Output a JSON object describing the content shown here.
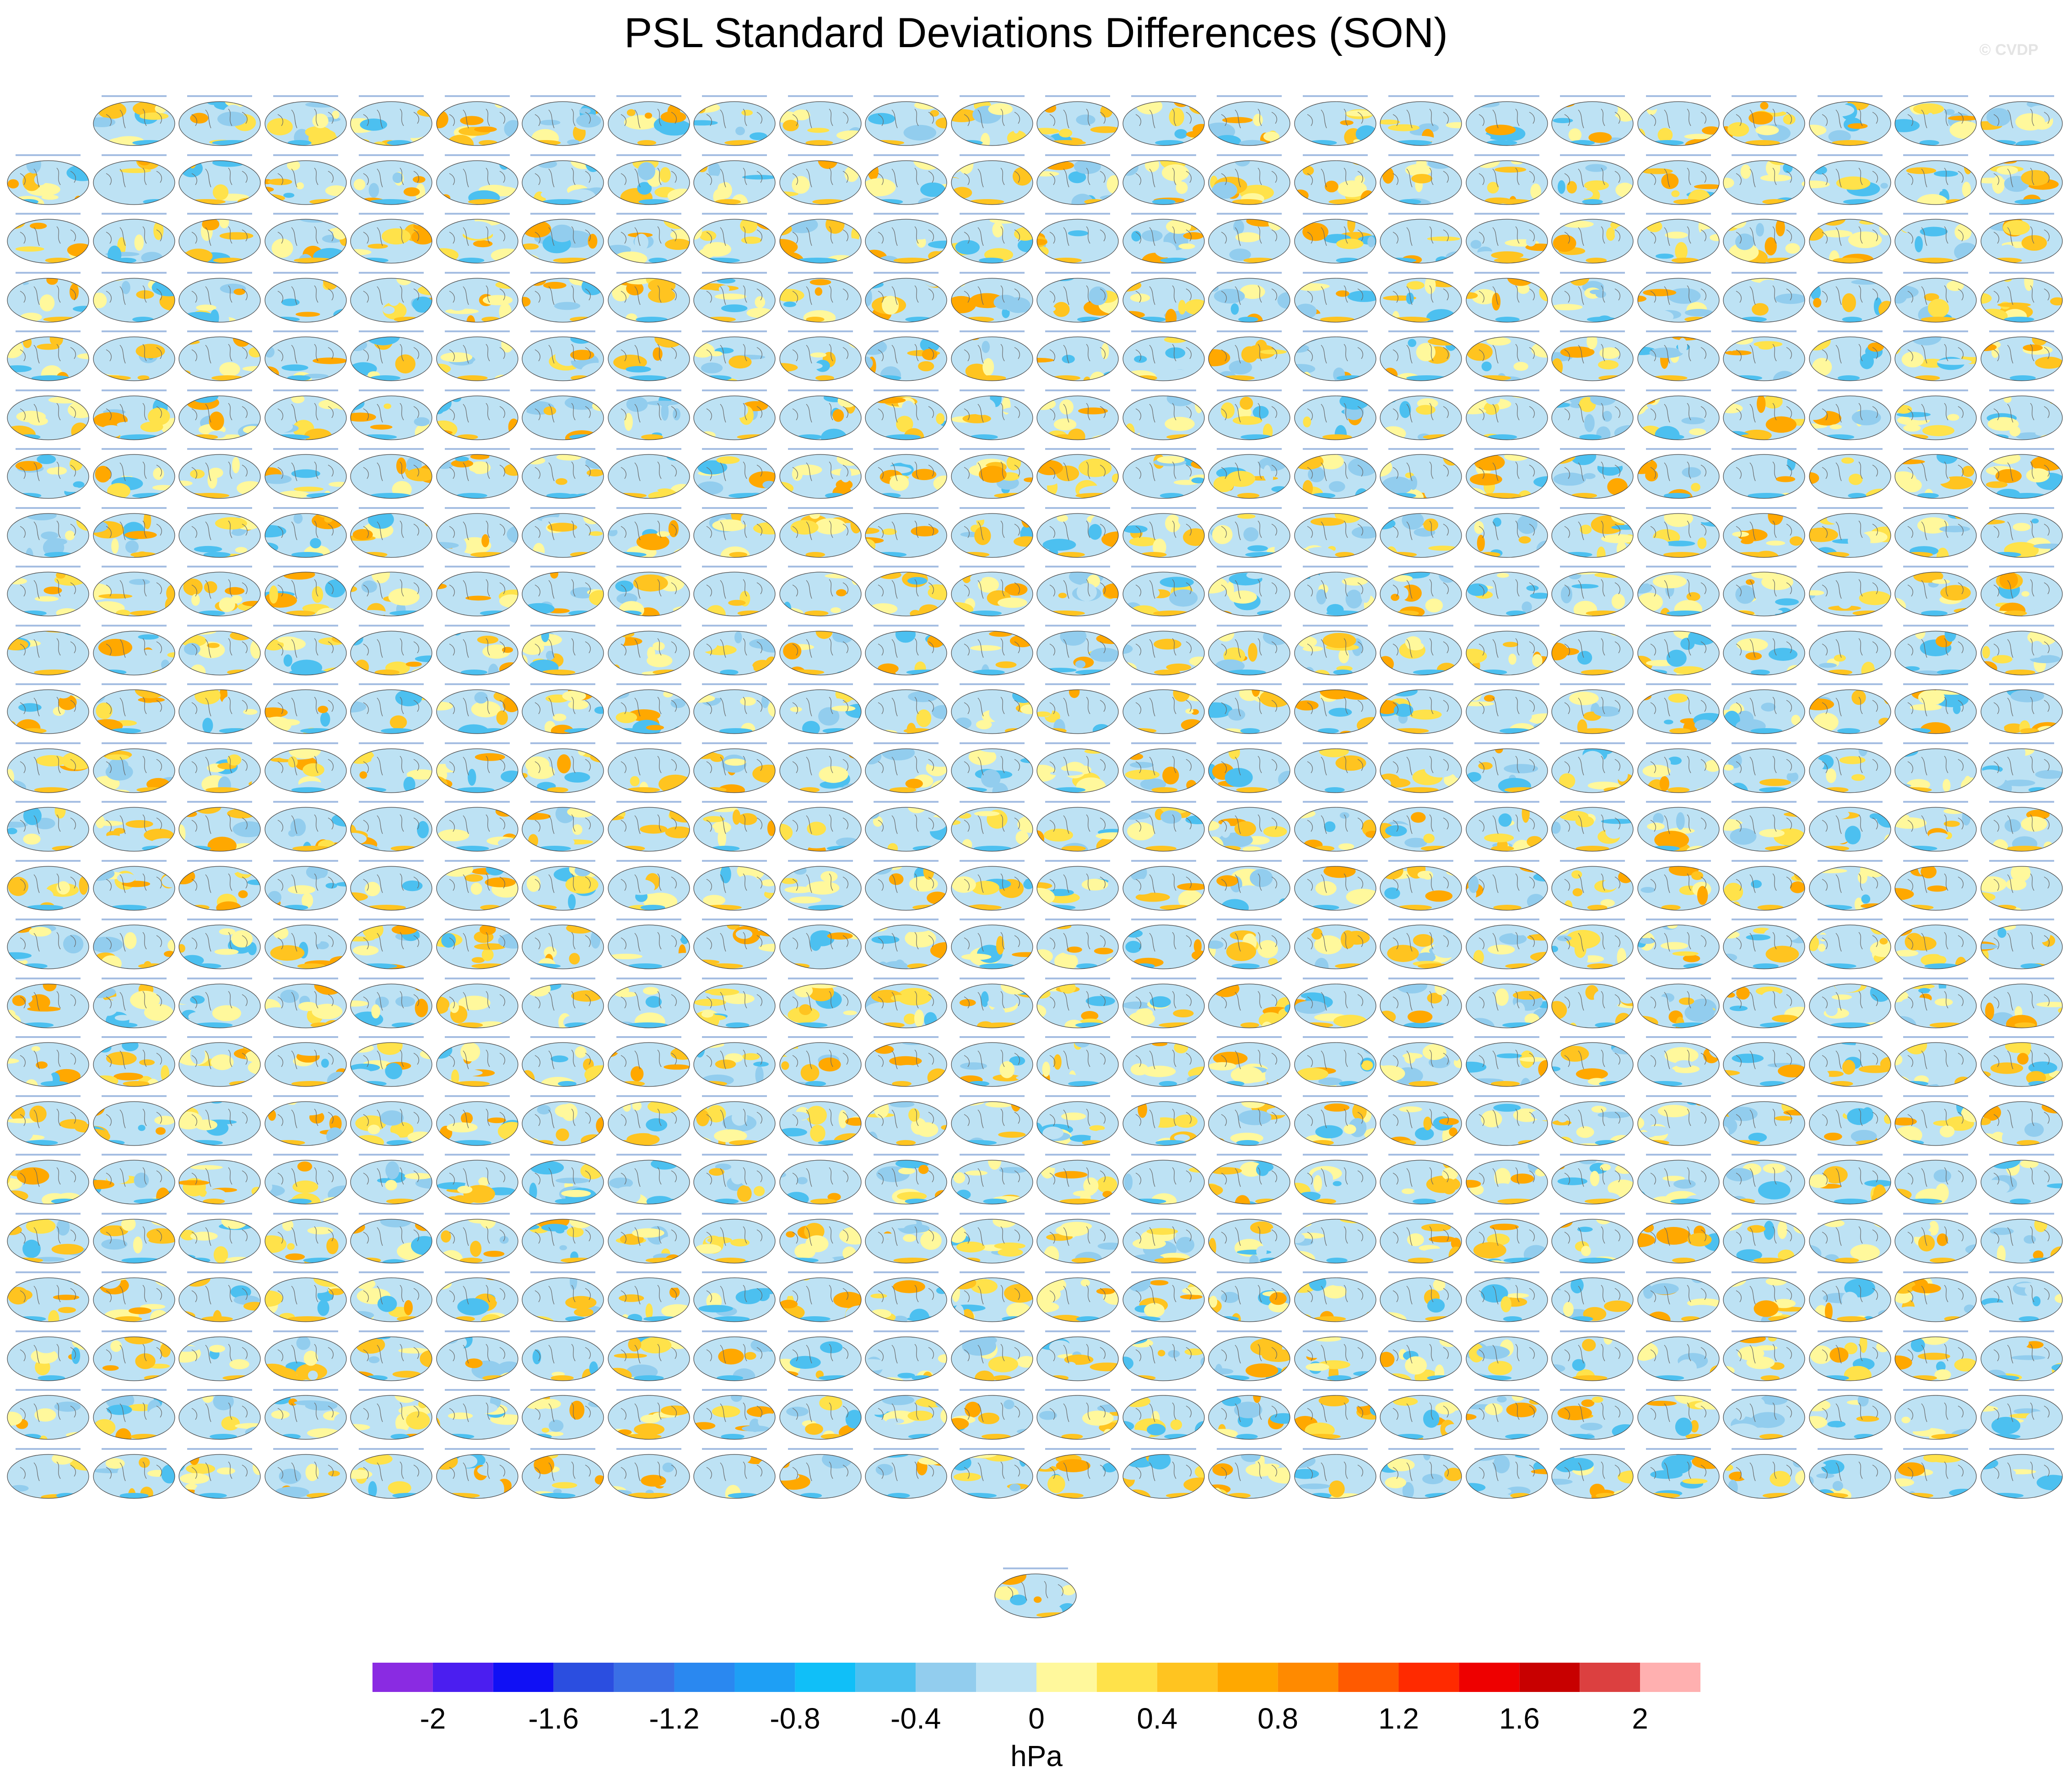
{
  "title": "PSL Standard Deviations Differences (SON)",
  "credit": "© CVDP",
  "chart_data": {
    "type": "heatmap",
    "title": "PSL Standard Deviations Differences (SON)",
    "description_panels": {
      "rows": 25,
      "columns": 24,
      "first_row_panels": 23,
      "last_row_panels": 1,
      "projection": "Robinson (global ellipse)",
      "subtitle_style": "tiny blue text per panel"
    },
    "colorbar": {
      "unit": "hPa",
      "tick_labels": [
        "-2",
        "-1.6",
        "-1.2",
        "-0.8",
        "-0.4",
        "0",
        "0.4",
        "0.8",
        "1.2",
        "1.6",
        "2"
      ],
      "levels": [
        -2.2,
        -2.0,
        -1.8,
        -1.6,
        -1.4,
        -1.2,
        -1.0,
        -0.8,
        -0.6,
        -0.4,
        -0.2,
        0.0,
        0.2,
        0.4,
        0.6,
        0.8,
        1.0,
        1.2,
        1.4,
        1.6,
        1.8,
        2.0,
        2.2
      ],
      "colors": [
        "#8a2be2",
        "#4b1ef0",
        "#1010f5",
        "#2b4ee0",
        "#3a6fe6",
        "#2a88f0",
        "#1e9ff5",
        "#10bff8",
        "#4cc0f0",
        "#92cdee",
        "#bde2f4",
        "#fff89c",
        "#ffe24a",
        "#ffc420",
        "#ffa800",
        "#ff8a00",
        "#ff5a00",
        "#ff2a00",
        "#ee0000",
        "#c80000",
        "#dc4040",
        "#ffb0b0"
      ]
    }
  }
}
